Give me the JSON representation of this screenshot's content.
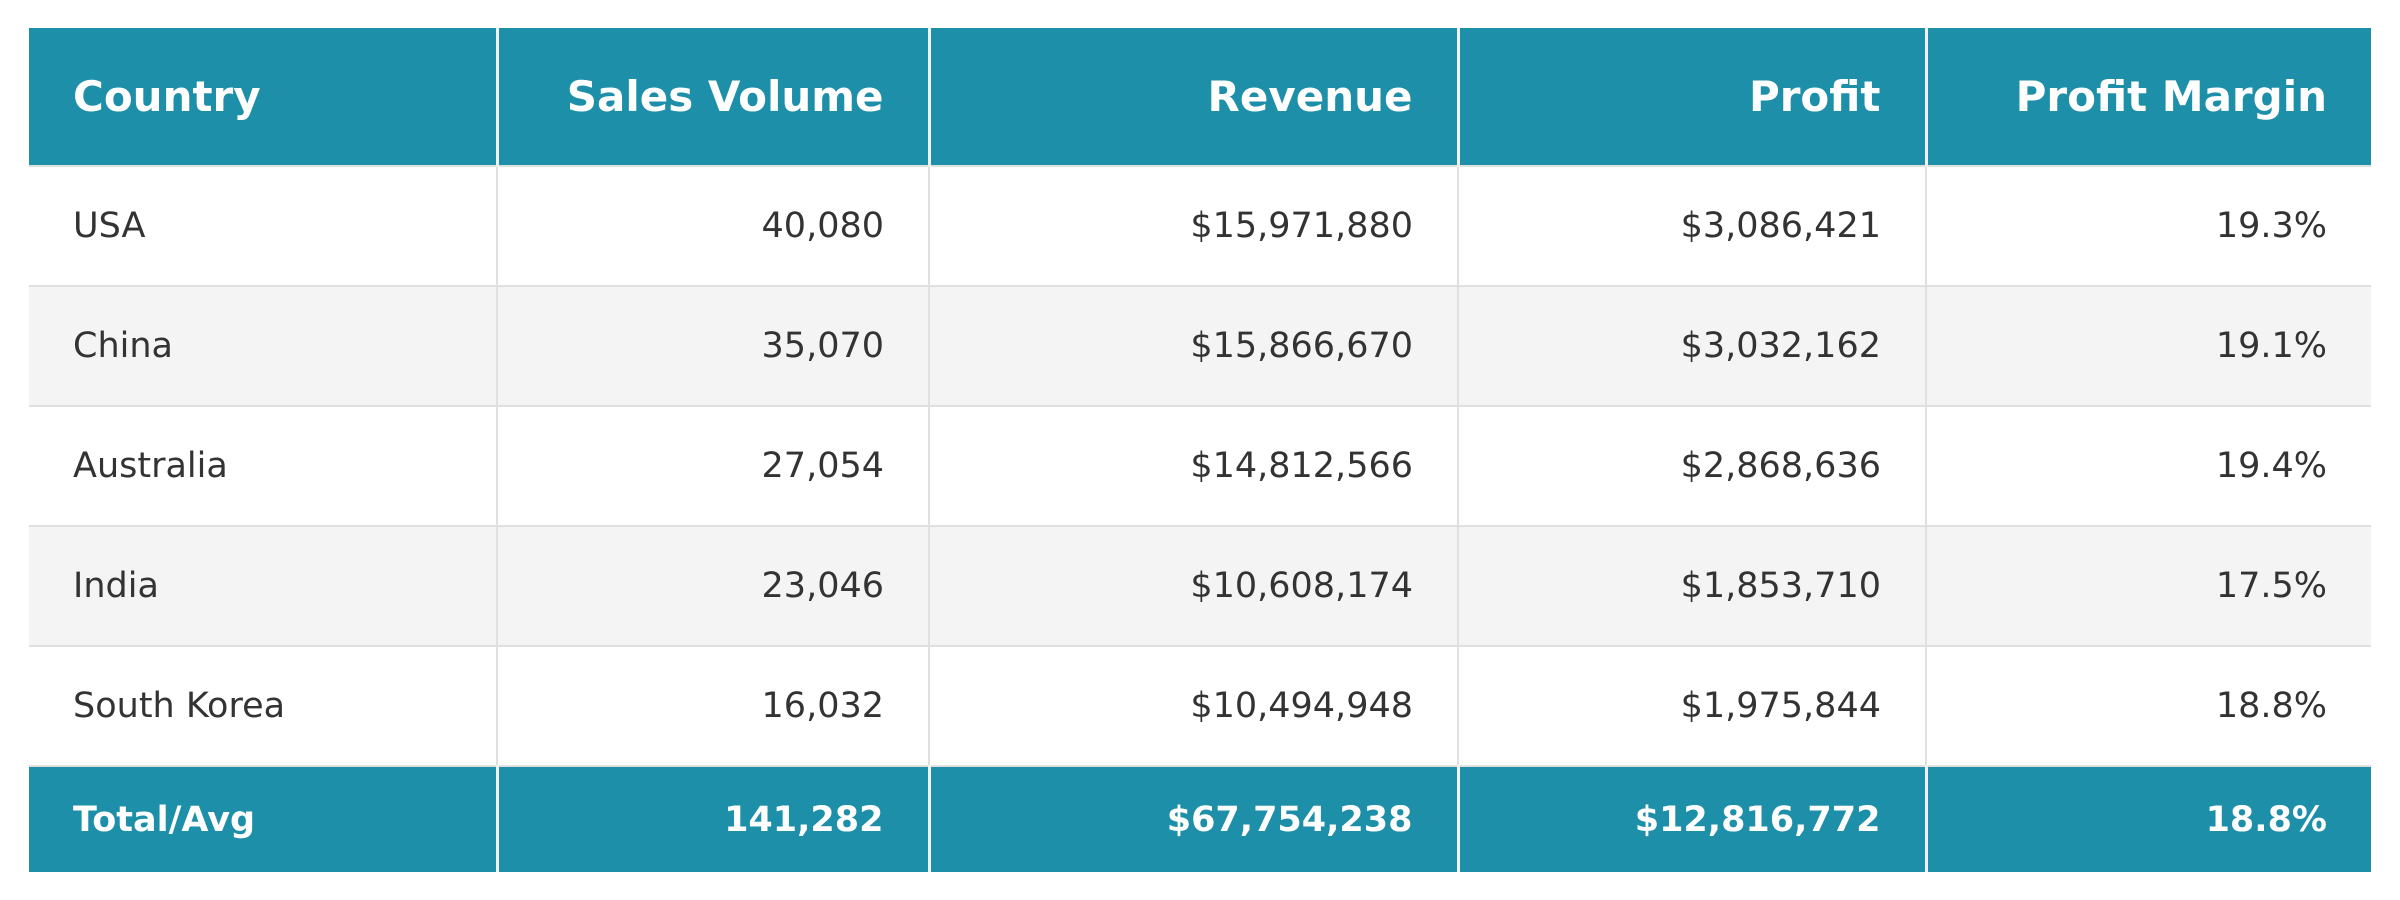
{
  "chart_data": {
    "type": "table",
    "columns": [
      "Country",
      "Sales Volume",
      "Revenue",
      "Profit",
      "Profit Margin"
    ],
    "rows": [
      [
        "USA",
        "40,080",
        "$15,971,880",
        "$3,086,421",
        "19.3%"
      ],
      [
        "China",
        "35,070",
        "$15,866,670",
        "$3,032,162",
        "19.1%"
      ],
      [
        "Australia",
        "27,054",
        "$14,812,566",
        "$2,868,636",
        "19.4%"
      ],
      [
        "India",
        "23,046",
        "$10,608,174",
        "$1,853,710",
        "17.5%"
      ],
      [
        "South Korea",
        "16,032",
        "$10,494,948",
        "$1,975,844",
        "18.8%"
      ]
    ],
    "footer": [
      "Total/Avg",
      "141,282",
      "$67,754,238",
      "$12,816,772",
      "18.8%"
    ]
  },
  "colors": {
    "header_bg": "#1d8fa9",
    "header_text": "#ffffff",
    "row_alt_bg": "#f4f4f4",
    "body_text": "#333333"
  }
}
